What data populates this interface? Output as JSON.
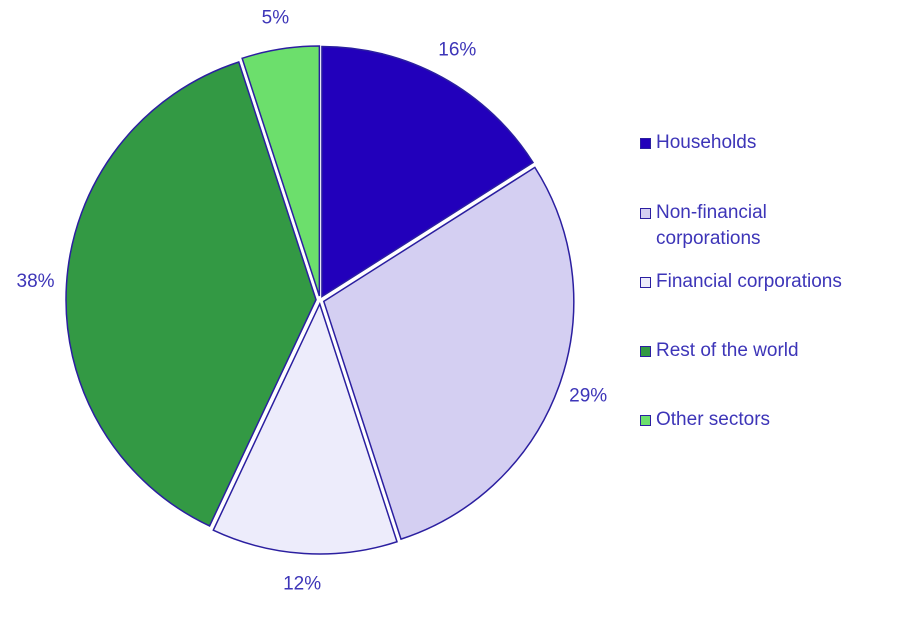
{
  "chart_data": {
    "type": "pie",
    "title": "",
    "categories": [
      "Households",
      "Non-financial corporations",
      "Financial corporations",
      "Rest of the world",
      "Other sectors"
    ],
    "values": [
      16,
      29,
      12,
      38,
      5
    ],
    "labels": [
      "16%",
      "29%",
      "12%",
      "38%",
      "5%"
    ],
    "colors": [
      "#2200bb",
      "#d4cff2",
      "#edecfb",
      "#339944",
      "#6cdf6c"
    ],
    "legend_position": "right",
    "start": "top",
    "direction": "clockwise"
  },
  "legend": {
    "items": [
      {
        "label_line1": "Households",
        "label_line2": "",
        "color": "#2200bb"
      },
      {
        "label_line1": "Non-financial",
        "label_line2": "corporations",
        "color": "#d4cff2"
      },
      {
        "label_line1": "Financial corporations",
        "label_line2": "",
        "color": "#edecfb"
      },
      {
        "label_line1": "Rest of the world",
        "label_line2": "",
        "color": "#339944"
      },
      {
        "label_line1": "Other sectors",
        "label_line2": "",
        "color": "#6cdf6c"
      }
    ]
  },
  "colors": {
    "text": "#3d35b8",
    "outline": "#2b1fa0",
    "background": "#ffffff"
  }
}
